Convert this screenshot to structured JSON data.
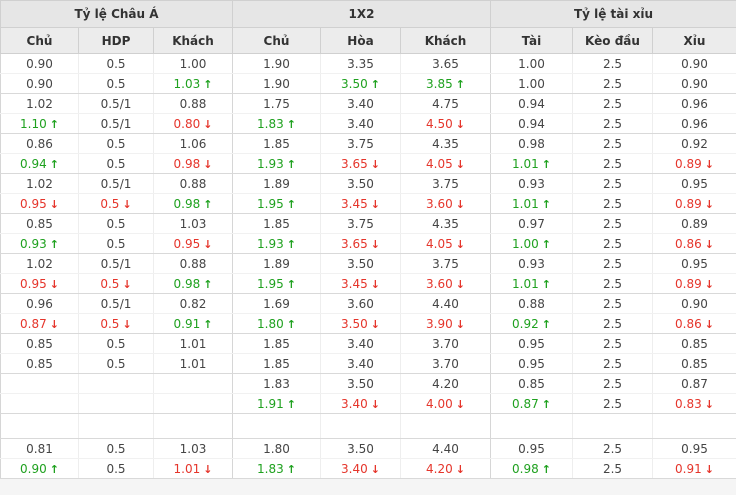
{
  "colors": {
    "up": "#1fa11f",
    "down": "#e5352b"
  },
  "icons": {
    "up": "↑",
    "down": "↓"
  },
  "table": {
    "groups": [
      {
        "label": "Tỷ lệ Châu Á",
        "cols": [
          "Chủ",
          "HDP",
          "Khách"
        ]
      },
      {
        "label": "1X2",
        "cols": [
          "Chủ",
          "Hòa",
          "Khách"
        ]
      },
      {
        "label": "Tỷ lệ tài xỉu",
        "cols": [
          "Tài",
          "Kèo đầu",
          "Xỉu"
        ]
      }
    ],
    "sections": [
      {
        "type": "match",
        "rows": [
          [
            [
              "0.90",
              ""
            ],
            [
              "0.5",
              ""
            ],
            [
              "1.00",
              ""
            ],
            [
              "1.90",
              ""
            ],
            [
              "3.35",
              ""
            ],
            [
              "3.65",
              ""
            ],
            [
              "1.00",
              ""
            ],
            [
              "2.5",
              ""
            ],
            [
              "0.90",
              ""
            ]
          ],
          [
            [
              "0.90",
              ""
            ],
            [
              "0.5",
              ""
            ],
            [
              "1.03",
              "up"
            ],
            [
              "1.90",
              ""
            ],
            [
              "3.50",
              "up"
            ],
            [
              "3.85",
              "up"
            ],
            [
              "1.00",
              ""
            ],
            [
              "2.5",
              ""
            ],
            [
              "0.90",
              ""
            ]
          ]
        ]
      },
      {
        "type": "match",
        "rows": [
          [
            [
              "1.02",
              ""
            ],
            [
              "0.5/1",
              ""
            ],
            [
              "0.88",
              ""
            ],
            [
              "1.75",
              ""
            ],
            [
              "3.40",
              ""
            ],
            [
              "4.75",
              ""
            ],
            [
              "0.94",
              ""
            ],
            [
              "2.5",
              ""
            ],
            [
              "0.96",
              ""
            ]
          ],
          [
            [
              "1.10",
              "up"
            ],
            [
              "0.5/1",
              ""
            ],
            [
              "0.80",
              "down"
            ],
            [
              "1.83",
              "up"
            ],
            [
              "3.40",
              ""
            ],
            [
              "4.50",
              "down"
            ],
            [
              "0.94",
              ""
            ],
            [
              "2.5",
              ""
            ],
            [
              "0.96",
              ""
            ]
          ]
        ]
      },
      {
        "type": "match",
        "rows": [
          [
            [
              "0.86",
              ""
            ],
            [
              "0.5",
              ""
            ],
            [
              "1.06",
              ""
            ],
            [
              "1.85",
              ""
            ],
            [
              "3.75",
              ""
            ],
            [
              "4.35",
              ""
            ],
            [
              "0.98",
              ""
            ],
            [
              "2.5",
              ""
            ],
            [
              "0.92",
              ""
            ]
          ],
          [
            [
              "0.94",
              "up"
            ],
            [
              "0.5",
              ""
            ],
            [
              "0.98",
              "down"
            ],
            [
              "1.93",
              "up"
            ],
            [
              "3.65",
              "down"
            ],
            [
              "4.05",
              "down"
            ],
            [
              "1.01",
              "up"
            ],
            [
              "2.5",
              ""
            ],
            [
              "0.89",
              "down"
            ]
          ]
        ]
      },
      {
        "type": "match",
        "rows": [
          [
            [
              "1.02",
              ""
            ],
            [
              "0.5/1",
              ""
            ],
            [
              "0.88",
              ""
            ],
            [
              "1.89",
              ""
            ],
            [
              "3.50",
              ""
            ],
            [
              "3.75",
              ""
            ],
            [
              "0.93",
              ""
            ],
            [
              "2.5",
              ""
            ],
            [
              "0.95",
              ""
            ]
          ],
          [
            [
              "0.95",
              "down"
            ],
            [
              "0.5",
              "down"
            ],
            [
              "0.98",
              "up"
            ],
            [
              "1.95",
              "up"
            ],
            [
              "3.45",
              "down"
            ],
            [
              "3.60",
              "down"
            ],
            [
              "1.01",
              "up"
            ],
            [
              "2.5",
              ""
            ],
            [
              "0.89",
              "down"
            ]
          ]
        ]
      },
      {
        "type": "match",
        "rows": [
          [
            [
              "0.85",
              ""
            ],
            [
              "0.5",
              ""
            ],
            [
              "1.03",
              ""
            ],
            [
              "1.85",
              ""
            ],
            [
              "3.75",
              ""
            ],
            [
              "4.35",
              ""
            ],
            [
              "0.97",
              ""
            ],
            [
              "2.5",
              ""
            ],
            [
              "0.89",
              ""
            ]
          ],
          [
            [
              "0.93",
              "up"
            ],
            [
              "0.5",
              ""
            ],
            [
              "0.95",
              "down"
            ],
            [
              "1.93",
              "up"
            ],
            [
              "3.65",
              "down"
            ],
            [
              "4.05",
              "down"
            ],
            [
              "1.00",
              "up"
            ],
            [
              "2.5",
              ""
            ],
            [
              "0.86",
              "down"
            ]
          ]
        ]
      },
      {
        "type": "match",
        "rows": [
          [
            [
              "1.02",
              ""
            ],
            [
              "0.5/1",
              ""
            ],
            [
              "0.88",
              ""
            ],
            [
              "1.89",
              ""
            ],
            [
              "3.50",
              ""
            ],
            [
              "3.75",
              ""
            ],
            [
              "0.93",
              ""
            ],
            [
              "2.5",
              ""
            ],
            [
              "0.95",
              ""
            ]
          ],
          [
            [
              "0.95",
              "down"
            ],
            [
              "0.5",
              "down"
            ],
            [
              "0.98",
              "up"
            ],
            [
              "1.95",
              "up"
            ],
            [
              "3.45",
              "down"
            ],
            [
              "3.60",
              "down"
            ],
            [
              "1.01",
              "up"
            ],
            [
              "2.5",
              ""
            ],
            [
              "0.89",
              "down"
            ]
          ]
        ]
      },
      {
        "type": "match",
        "rows": [
          [
            [
              "0.96",
              ""
            ],
            [
              "0.5/1",
              ""
            ],
            [
              "0.82",
              ""
            ],
            [
              "1.69",
              ""
            ],
            [
              "3.60",
              ""
            ],
            [
              "4.40",
              ""
            ],
            [
              "0.88",
              ""
            ],
            [
              "2.5",
              ""
            ],
            [
              "0.90",
              ""
            ]
          ],
          [
            [
              "0.87",
              "down"
            ],
            [
              "0.5",
              "down"
            ],
            [
              "0.91",
              "up"
            ],
            [
              "1.80",
              "up"
            ],
            [
              "3.50",
              "down"
            ],
            [
              "3.90",
              "down"
            ],
            [
              "0.92",
              "up"
            ],
            [
              "2.5",
              ""
            ],
            [
              "0.86",
              "down"
            ]
          ]
        ]
      },
      {
        "type": "match",
        "rows": [
          [
            [
              "0.85",
              ""
            ],
            [
              "0.5",
              ""
            ],
            [
              "1.01",
              ""
            ],
            [
              "1.85",
              ""
            ],
            [
              "3.40",
              ""
            ],
            [
              "3.70",
              ""
            ],
            [
              "0.95",
              ""
            ],
            [
              "2.5",
              ""
            ],
            [
              "0.85",
              ""
            ]
          ],
          [
            [
              "0.85",
              ""
            ],
            [
              "0.5",
              ""
            ],
            [
              "1.01",
              ""
            ],
            [
              "1.85",
              ""
            ],
            [
              "3.40",
              ""
            ],
            [
              "3.70",
              ""
            ],
            [
              "0.95",
              ""
            ],
            [
              "2.5",
              ""
            ],
            [
              "0.85",
              ""
            ]
          ]
        ]
      },
      {
        "type": "match",
        "rows": [
          [
            [
              "",
              ""
            ],
            [
              "",
              ""
            ],
            [
              "",
              ""
            ],
            [
              "1.83",
              ""
            ],
            [
              "3.50",
              ""
            ],
            [
              "4.20",
              ""
            ],
            [
              "0.85",
              ""
            ],
            [
              "2.5",
              ""
            ],
            [
              "0.87",
              ""
            ]
          ],
          [
            [
              "",
              ""
            ],
            [
              "",
              ""
            ],
            [
              "",
              ""
            ],
            [
              "1.91",
              "up"
            ],
            [
              "3.40",
              "down"
            ],
            [
              "4.00",
              "down"
            ],
            [
              "0.87",
              "up"
            ],
            [
              "2.5",
              ""
            ],
            [
              "0.83",
              "down"
            ]
          ]
        ]
      },
      {
        "type": "spacer"
      },
      {
        "type": "match",
        "rows": [
          [
            [
              "0.81",
              ""
            ],
            [
              "0.5",
              ""
            ],
            [
              "1.03",
              ""
            ],
            [
              "1.80",
              ""
            ],
            [
              "3.50",
              ""
            ],
            [
              "4.40",
              ""
            ],
            [
              "0.95",
              ""
            ],
            [
              "2.5",
              ""
            ],
            [
              "0.95",
              ""
            ]
          ],
          [
            [
              "0.90",
              "up"
            ],
            [
              "0.5",
              ""
            ],
            [
              "1.01",
              "down"
            ],
            [
              "1.83",
              "up"
            ],
            [
              "3.40",
              "down"
            ],
            [
              "4.20",
              "down"
            ],
            [
              "0.98",
              "up"
            ],
            [
              "2.5",
              ""
            ],
            [
              "0.91",
              "down"
            ]
          ]
        ]
      }
    ]
  }
}
